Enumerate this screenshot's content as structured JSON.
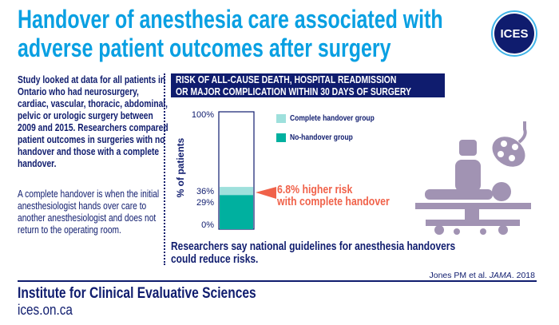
{
  "title": {
    "line1": "Handover of anesthesia care associated with",
    "line2": "adverse patient outcomes after surgery"
  },
  "logo": {
    "text": "ICES"
  },
  "intro": "Study looked at data for all patients in Ontario who had neurosurgery, cardiac, vascular, thoracic, abdominal, pelvic or urologic surgery between 2009 and 2015. Researchers compared patient outcomes in surgeries with no handover and those with a complete handover.",
  "definition": "A complete handover is when the initial anesthesiologist hands over care to another anesthesiologist and does not return to the operating room.",
  "chart_data": {
    "type": "bar",
    "stacked": true,
    "title_line1": "RISK OF ALL-CAUSE DEATH, HOSPITAL READMISSION",
    "title_line2": "OR MAJOR COMPLICATION WITHIN 30 DAYS OF SURGERY",
    "ylabel": "% of patients",
    "ylim": [
      0,
      100
    ],
    "ticks": [
      "0%",
      "29%",
      "36%",
      "100%"
    ],
    "series": [
      {
        "name": "No-handover group",
        "value": 29,
        "color": "#00b09f"
      },
      {
        "name": "Complete handover group",
        "value": 36,
        "color": "#9ee0dc"
      }
    ],
    "annotation_line1": "6.8% higher risk",
    "annotation_line2": "with complete handover",
    "annotation_color": "#f0624a",
    "legend_placement": "right"
  },
  "illustration": {
    "icon": "surgery-operating-room-icon",
    "color": "#a193b3"
  },
  "conclusion": {
    "line1": "Researchers say national guidelines for anesthesia handovers",
    "line2": "could reduce risks."
  },
  "citation": {
    "authors": "Jones PM et al. ",
    "journal": "JAMA",
    "year": ". 2018"
  },
  "footer": {
    "org": "Institute for Clinical Evaluative Sciences",
    "url": "ices.on.ca"
  },
  "colors": {
    "title": "#0aa0e2",
    "navy": "#0f1c6e"
  }
}
